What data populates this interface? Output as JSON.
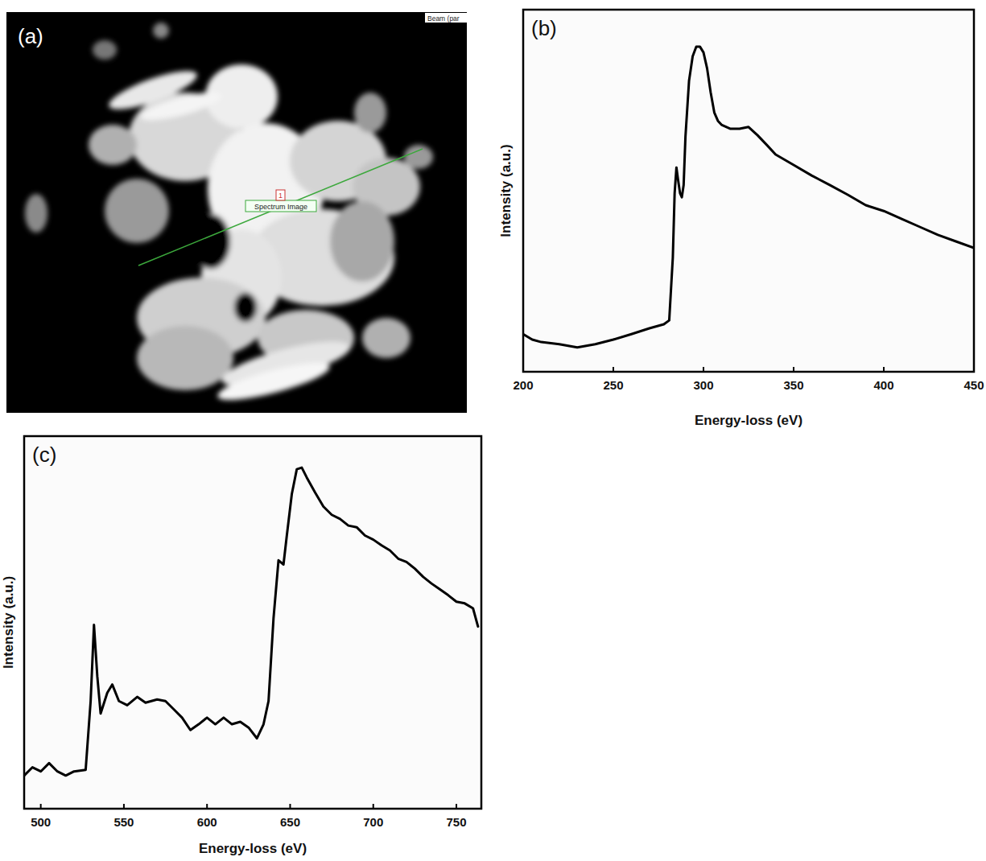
{
  "chart_data": [
    {
      "type": "image",
      "label": "(a)",
      "annotations": [
        "Spectrum Image",
        "1",
        "Beam (par"
      ]
    },
    {
      "type": "line",
      "label": "(b)",
      "x_label": "Energy-loss (eV)",
      "y_label": "Intensity (a.u.)",
      "x": [
        200,
        205,
        210,
        220,
        230,
        240,
        250,
        260,
        270,
        278,
        281,
        283,
        284,
        285,
        286,
        287,
        288,
        289,
        290,
        292,
        294,
        296,
        298,
        300,
        302,
        304,
        306,
        308,
        310,
        315,
        320,
        325,
        330,
        335,
        340,
        350,
        360,
        370,
        380,
        390,
        400,
        410,
        420,
        430,
        440,
        450
      ],
      "values": [
        0.104,
        0.089,
        0.082,
        0.076,
        0.067,
        0.076,
        0.089,
        0.104,
        0.12,
        0.131,
        0.142,
        0.316,
        0.493,
        0.564,
        0.527,
        0.493,
        0.482,
        0.516,
        0.649,
        0.804,
        0.871,
        0.898,
        0.898,
        0.882,
        0.838,
        0.771,
        0.716,
        0.693,
        0.682,
        0.671,
        0.671,
        0.676,
        0.653,
        0.627,
        0.6,
        0.571,
        0.542,
        0.516,
        0.489,
        0.46,
        0.444,
        0.422,
        0.4,
        0.378,
        0.36,
        0.342
      ],
      "color": "#000000",
      "xlim": [
        200,
        450
      ],
      "xticks": [
        200,
        250,
        300,
        350,
        400,
        450
      ],
      "ylim": [
        0,
        1
      ],
      "tick_labels": "x"
    },
    {
      "type": "line",
      "label": "(c)",
      "x_label": "Energy-loss (eV)",
      "y_label": "Intensity (a.u.)",
      "x": [
        490,
        495,
        500,
        505,
        510,
        515,
        520,
        527,
        530,
        532,
        534,
        536,
        540,
        543,
        547,
        552,
        558,
        563,
        570,
        575,
        580,
        585,
        590,
        595,
        600,
        605,
        610,
        615,
        620,
        625,
        630,
        634,
        637,
        640,
        643,
        646,
        648,
        651,
        654,
        657,
        660,
        665,
        670,
        675,
        680,
        685,
        690,
        695,
        700,
        705,
        710,
        715,
        720,
        725,
        730,
        735,
        740,
        745,
        750,
        755,
        760,
        763
      ],
      "values": [
        0.18,
        0.2,
        0.19,
        0.21,
        0.19,
        0.18,
        0.19,
        0.194,
        0.36,
        0.544,
        0.42,
        0.33,
        0.38,
        0.4,
        0.36,
        0.35,
        0.37,
        0.356,
        0.364,
        0.36,
        0.34,
        0.32,
        0.29,
        0.304,
        0.32,
        0.304,
        0.32,
        0.304,
        0.31,
        0.296,
        0.27,
        0.304,
        0.36,
        0.56,
        0.7,
        0.69,
        0.76,
        0.86,
        0.92,
        0.924,
        0.9,
        0.864,
        0.83,
        0.81,
        0.8,
        0.784,
        0.78,
        0.76,
        0.75,
        0.736,
        0.724,
        0.704,
        0.696,
        0.68,
        0.66,
        0.644,
        0.63,
        0.616,
        0.6,
        0.596,
        0.584,
        0.54
      ],
      "color": "#000000",
      "xlim": [
        490,
        765
      ],
      "xticks": [
        500,
        550,
        600,
        650,
        700,
        750
      ],
      "ylim": [
        0.1,
        1.0
      ],
      "tick_labels": "x"
    }
  ]
}
